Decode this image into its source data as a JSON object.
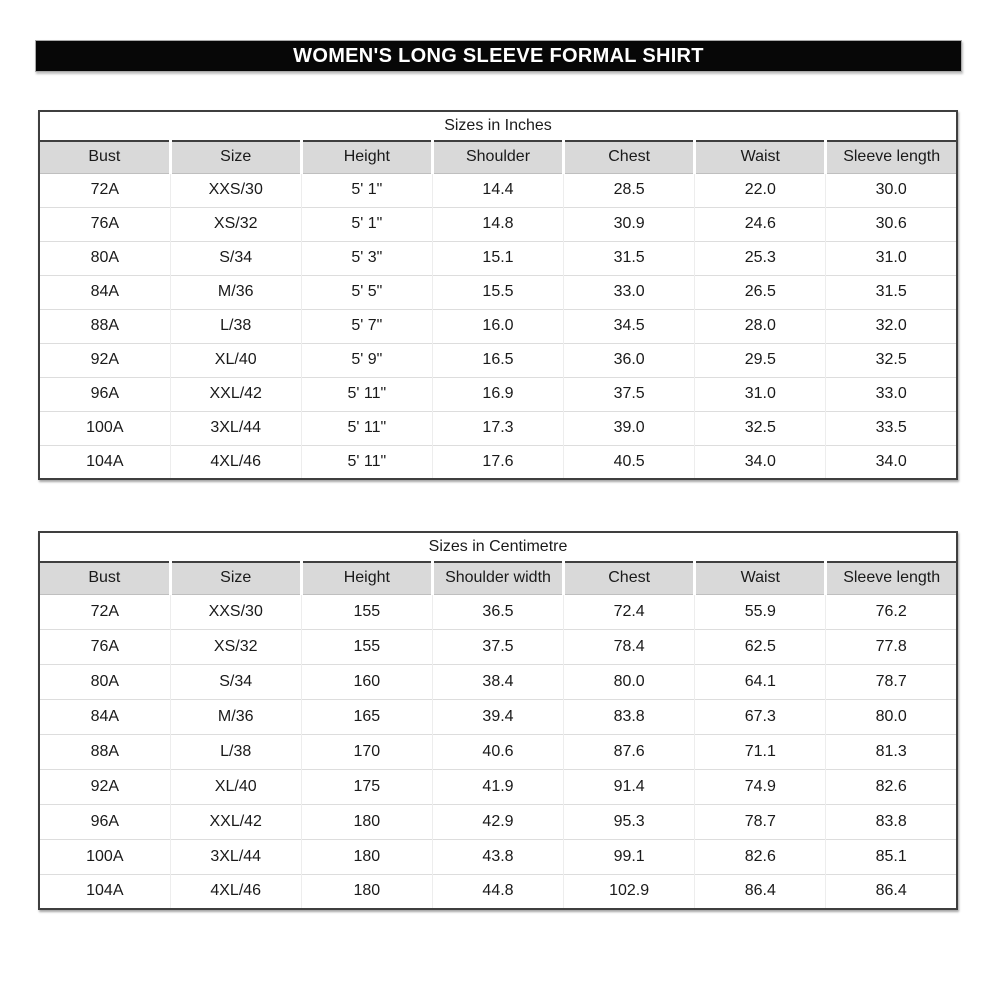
{
  "title": "WOMEN'S LONG SLEEVE FORMAL SHIRT",
  "tables": [
    {
      "caption": "Sizes in Inches",
      "headers": [
        "Bust",
        "Size",
        "Height",
        "Shoulder",
        "Chest",
        "Waist",
        "Sleeve length"
      ],
      "rows": [
        [
          "72A",
          "XXS/30",
          "5' 1\"",
          "14.4",
          "28.5",
          "22.0",
          "30.0"
        ],
        [
          "76A",
          "XS/32",
          "5' 1\"",
          "14.8",
          "30.9",
          "24.6",
          "30.6"
        ],
        [
          "80A",
          "S/34",
          "5' 3\"",
          "15.1",
          "31.5",
          "25.3",
          "31.0"
        ],
        [
          "84A",
          "M/36",
          "5' 5\"",
          "15.5",
          "33.0",
          "26.5",
          "31.5"
        ],
        [
          "88A",
          "L/38",
          "5' 7\"",
          "16.0",
          "34.5",
          "28.0",
          "32.0"
        ],
        [
          "92A",
          "XL/40",
          "5' 9\"",
          "16.5",
          "36.0",
          "29.5",
          "32.5"
        ],
        [
          "96A",
          "XXL/42",
          "5' 11\"",
          "16.9",
          "37.5",
          "31.0",
          "33.0"
        ],
        [
          "100A",
          "3XL/44",
          "5' 11\"",
          "17.3",
          "39.0",
          "32.5",
          "33.5"
        ],
        [
          "104A",
          "4XL/46",
          "5' 11\"",
          "17.6",
          "40.5",
          "34.0",
          "34.0"
        ]
      ]
    },
    {
      "caption": "Sizes in Centimetre",
      "headers": [
        "Bust",
        "Size",
        "Height",
        "Shoulder width",
        "Chest",
        "Waist",
        "Sleeve length"
      ],
      "rows": [
        [
          "72A",
          "XXS/30",
          "155",
          "36.5",
          "72.4",
          "55.9",
          "76.2"
        ],
        [
          "76A",
          "XS/32",
          "155",
          "37.5",
          "78.4",
          "62.5",
          "77.8"
        ],
        [
          "80A",
          "S/34",
          "160",
          "38.4",
          "80.0",
          "64.1",
          "78.7"
        ],
        [
          "84A",
          "M/36",
          "165",
          "39.4",
          "83.8",
          "67.3",
          "80.0"
        ],
        [
          "88A",
          "L/38",
          "170",
          "40.6",
          "87.6",
          "71.1",
          "81.3"
        ],
        [
          "92A",
          "XL/40",
          "175",
          "41.9",
          "91.4",
          "74.9",
          "82.6"
        ],
        [
          "96A",
          "XXL/42",
          "180",
          "42.9",
          "95.3",
          "78.7",
          "83.8"
        ],
        [
          "100A",
          "3XL/44",
          "180",
          "43.8",
          "99.1",
          "82.6",
          "85.1"
        ],
        [
          "104A",
          "4XL/46",
          "180",
          "44.8",
          "102.9",
          "86.4",
          "86.4"
        ]
      ]
    }
  ],
  "colors": {
    "banner_bg": "#070707",
    "banner_text": "#ffffff",
    "header_bg": "#d9d9d9",
    "table_border": "#3f3f3f",
    "gridline": "#dddddd"
  }
}
